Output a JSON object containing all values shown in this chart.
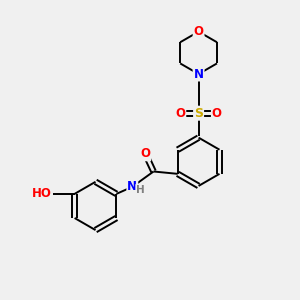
{
  "bg_color": "#f0f0f0",
  "atom_colors": {
    "C": "#000000",
    "N": "#0000ff",
    "O": "#ff0000",
    "S": "#ccaa00",
    "H": "#808080"
  },
  "bond_color": "#000000",
  "lw": 1.4,
  "double_sep": 0.08,
  "fontsize": 8.5
}
